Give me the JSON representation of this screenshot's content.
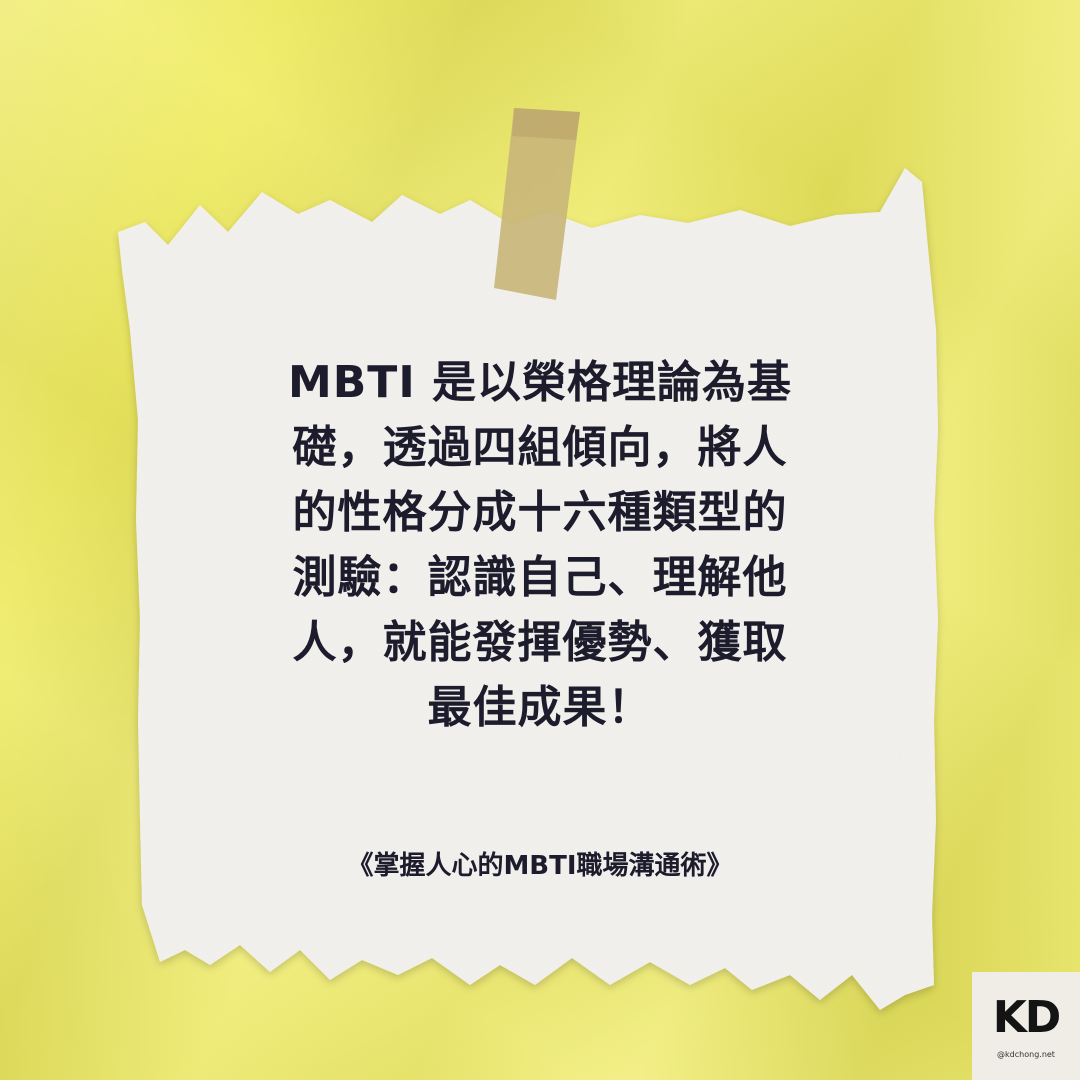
{
  "colors": {
    "background": "#f0ec5f",
    "paper": "#f4f2ee",
    "tape": "#c9b67a",
    "text": "#1c1c2c"
  },
  "quote": {
    "lines": [
      "MBTI 是以榮格理論為基",
      "礎，透過四組傾向，將人",
      "的性格分成十六種類型的",
      "測驗：認識自己、理解他",
      "人，就能發揮優勢、獲取",
      "最佳成果！"
    ]
  },
  "source": "《掌握人心的MBTI職場溝通術》",
  "logo": {
    "mark": "KD",
    "handle": "@kdchong.net"
  }
}
